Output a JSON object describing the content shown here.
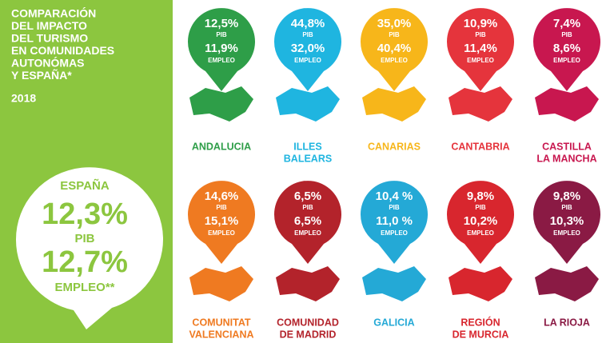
{
  "header": {
    "title_lines": [
      "COMPARACIÓN",
      "DEL IMPACTO",
      "DEL TURISMO",
      "EN COMUNIDADES",
      "AUTONÓMAS",
      "Y ESPAÑA*"
    ],
    "year": "2018"
  },
  "spain": {
    "name": "ESPAÑA",
    "pib": "12,3%",
    "pib_label": "PIB",
    "empleo": "12,7%",
    "empleo_label": "EMPLEO**"
  },
  "labels": {
    "pib": "PIB",
    "empleo": "EMPLEO"
  },
  "regions": [
    {
      "name": [
        "ANDALUCIA"
      ],
      "pib": "12,5%",
      "empleo": "11,9%",
      "color": "#2e9e48"
    },
    {
      "name": [
        "ILLES",
        "BALEARS"
      ],
      "pib": "44,8%",
      "empleo": "32,0%",
      "color": "#1fb5e0"
    },
    {
      "name": [
        "CANARIAS"
      ],
      "pib": "35,0%",
      "empleo": "40,4%",
      "color": "#f7b61a"
    },
    {
      "name": [
        "CANTABRIA"
      ],
      "pib": "10,9%",
      "empleo": "11,4%",
      "color": "#e5343c"
    },
    {
      "name": [
        "CASTILLA",
        "LA MANCHA"
      ],
      "pib": "7,4%",
      "empleo": "8,6%",
      "color": "#c8174f"
    },
    {
      "name": [
        "COMUNITAT",
        "VALENCIANA"
      ],
      "pib": "14,6%",
      "empleo": "15,1%",
      "color": "#ef7a21"
    },
    {
      "name": [
        "COMUNIDAD",
        "DE MADRID"
      ],
      "pib": "6,5%",
      "empleo": "6,5%",
      "color": "#b3232b"
    },
    {
      "name": [
        "GALICIA"
      ],
      "pib": "10,4 %",
      "empleo": "11,0 %",
      "color": "#24a9d6"
    },
    {
      "name": [
        "REGIÓN",
        "DE MURCIA"
      ],
      "pib": "9,8%",
      "empleo": "10,2%",
      "color": "#d8262e"
    },
    {
      "name": [
        "LA RIOJA"
      ],
      "pib": "9,8%",
      "empleo": "10,3%",
      "color": "#8a1a44"
    }
  ]
}
